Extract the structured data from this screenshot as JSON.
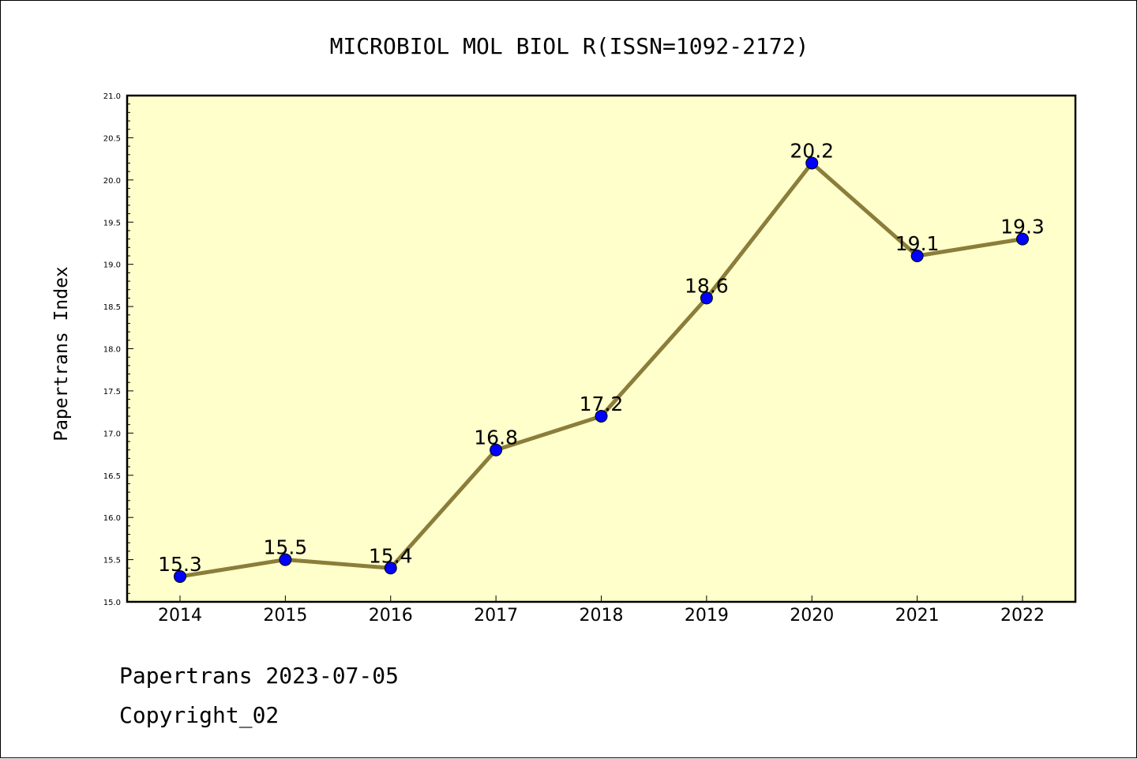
{
  "chart_data": {
    "type": "line",
    "title": "MICROBIOL MOL BIOL R(ISSN=1092-2172)",
    "ylabel": "Papertrans Index",
    "xlabel": "",
    "categories": [
      "2014",
      "2015",
      "2016",
      "2017",
      "2018",
      "2019",
      "2020",
      "2021",
      "2022"
    ],
    "series": [
      {
        "values": [
          15.3,
          15.5,
          15.4,
          16.8,
          17.2,
          18.6,
          20.2,
          19.1,
          19.3
        ]
      }
    ],
    "data_labels": [
      "15.3",
      "15.5",
      "15.4",
      "16.8",
      "17.2",
      "18.6",
      "20.2",
      "19.1",
      "19.3"
    ],
    "ylim": [
      15.0,
      21.0
    ],
    "yticks": [
      "15.0",
      "15.5",
      "16.0",
      "16.5",
      "17.0",
      "17.5",
      "18.0",
      "18.5",
      "19.0",
      "19.5",
      "20.0",
      "20.5",
      "21.0"
    ],
    "grid": false,
    "legend": "none",
    "colors": {
      "plot_background": "#ffffcc",
      "line": "#8b7d3a",
      "marker": "#0000ff"
    }
  },
  "footer": {
    "line1": "Papertrans 2023-07-05",
    "line2": "Copyright_02"
  }
}
